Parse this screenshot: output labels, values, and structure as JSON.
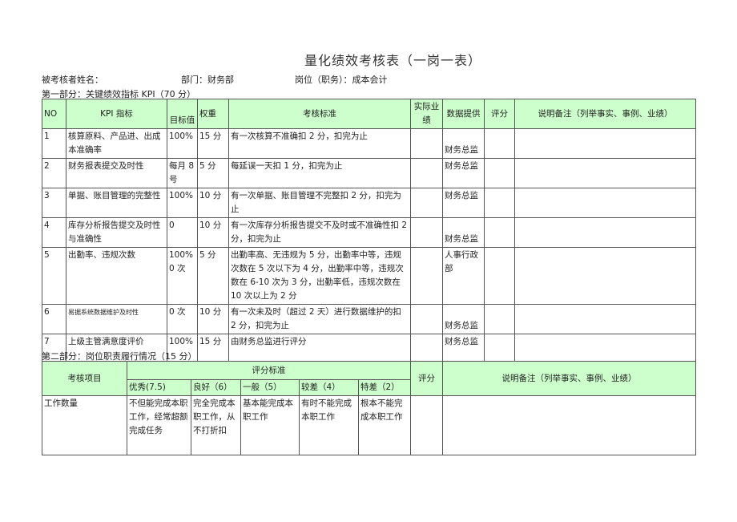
{
  "title": "量化绩效考核表（一岗一表）",
  "info": {
    "name_label": "被考核者姓名：",
    "dept": "部门：财务部",
    "post": "岗位（职务）：成本会计"
  },
  "part1": {
    "heading": "第一部分：关键绩效指标 KPI（70 分）",
    "headers": {
      "no": "NO",
      "kpi": "KPI 指标",
      "target": "目标值",
      "weight": "权重",
      "criteria": "考核标准",
      "actual": "实际业绩",
      "provider": "数据提供",
      "score": "评分",
      "note": "说明备注（列举事实、事例、业绩）"
    },
    "rows": [
      {
        "no": "1",
        "kpi": "核算原料、产品进、出成本准确率",
        "target": "100%",
        "weight": "15 分",
        "criteria": "有一次核算不准确扣 2 分，扣完为止",
        "provider": "财务总监"
      },
      {
        "no": "2",
        "kpi": "财务报表提交及时性",
        "target": "每月 8 号",
        "weight": "5 分",
        "criteria": "每延误一天扣 1 分，扣完为止",
        "provider": "财务总监"
      },
      {
        "no": "3",
        "kpi": "单据、账目管理的完整性",
        "target": "100%",
        "weight": "10 分",
        "criteria": "有一次单据、账目管理不完整扣 2 分，扣完为止",
        "provider": "财务总监"
      },
      {
        "no": "4",
        "kpi": "库存分析报告提交及时性与准确性",
        "target": "0",
        "weight": "10 分",
        "criteria": "有一次库存分析报告提交不及时或不准确性扣 2 分，扣完为止",
        "provider": "财务总监"
      },
      {
        "no": "5",
        "kpi": "出勤率、违规次数",
        "target": "100% 0 次",
        "weight": "5 分",
        "criteria": "出勤率高、无违规为 5 分，出勤率中等，违规次数在 5 次以下为 4 分，出勤率中等，违规次数在 6-10 次为 3 分，出勤率低，违规次数在 10 次以上为 2 分",
        "provider": "人事行政部"
      },
      {
        "no": "6",
        "kpi": "易据系统数据维护及时性",
        "target": "0 次",
        "weight": "10 分",
        "criteria": "有一次未及时（超过 2 天）进行数据维护的扣 2 分，扣完为止",
        "provider": "财务总监"
      },
      {
        "no": "7",
        "kpi": "上级主管满意度评价",
        "target": "100%",
        "weight": "15 分",
        "criteria": "由财务总监进行评分",
        "provider": "财务总监"
      }
    ]
  },
  "part2": {
    "heading": "第二部分：岗位职责履行情况（15 分）",
    "headers": {
      "item": "考核项目",
      "standard": "评分标准",
      "score": "评分",
      "note": "说明备注（列举事实、事例、业绩）",
      "levels": [
        "优秀(7.5)",
        "良好（6）",
        "一般（5）",
        "较差（4）",
        "特差（2）"
      ]
    },
    "rows": [
      {
        "item": "工作数量",
        "levels": [
          "不但能完成本职工作，经常超额完成任务",
          "完全完成本职工作，从不打折扣",
          "基本能完成本职工作",
          "有时不能完成本职工作",
          "根本不能完成本职工作"
        ]
      }
    ]
  },
  "colors": {
    "header_bg": "#ccffcc"
  }
}
